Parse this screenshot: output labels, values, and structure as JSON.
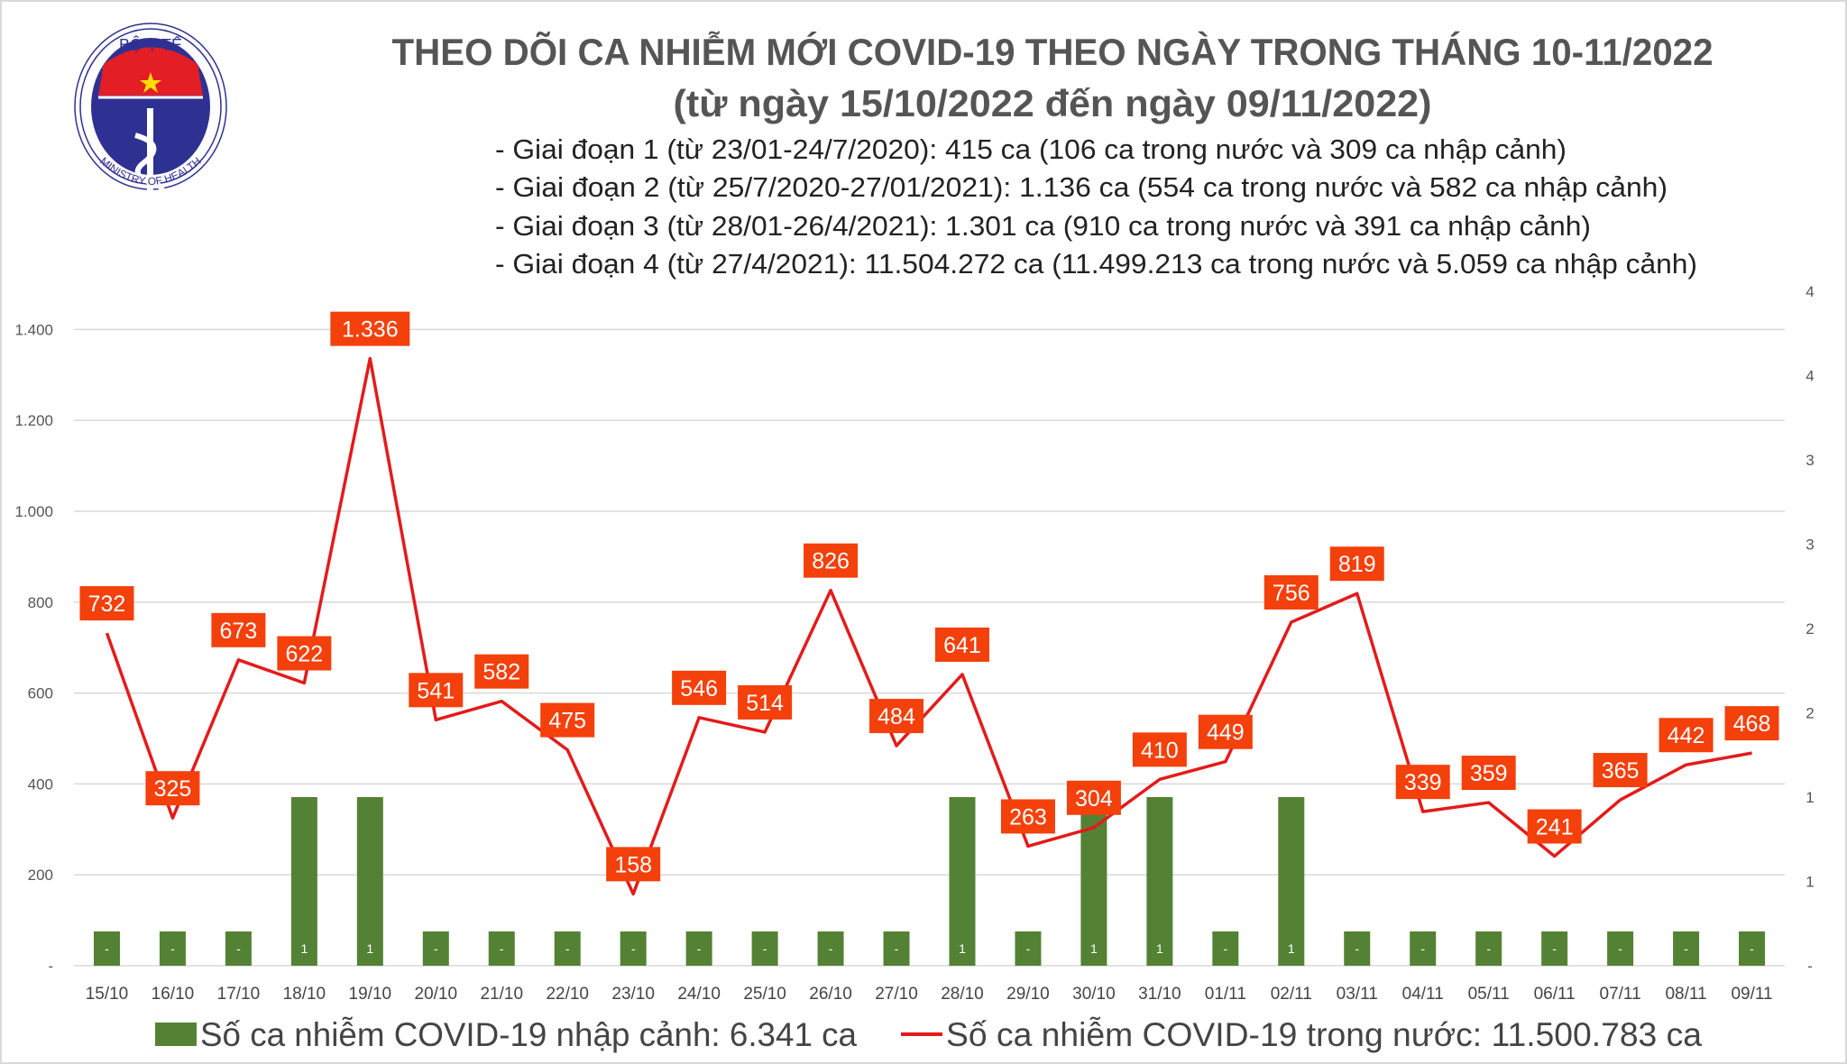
{
  "header": {
    "logo_text_top": "BỘ Y TẾ",
    "logo_text_bottom": "MINISTRY OF HEALTH",
    "title": "THEO DÕI CA NHIỄM MỚI COVID-19 THEO NGÀY TRONG THÁNG 10-11/2022",
    "subtitle": "(từ ngày 15/10/2022 đến ngày 09/11/2022)",
    "bullets": [
      "- Giai đoạn 1 (từ 23/01-24/7/2020): 415 ca (106 ca trong nước và 309 ca nhập cảnh)",
      "- Giai đoạn 2 (từ 25/7/2020-27/01/2021): 1.136 ca (554 ca trong nước và 582 ca nhập cảnh)",
      "- Giai đoạn 3 (từ 28/01-26/4/2021): 1.301 ca (910 ca trong nước và 391 ca nhập cảnh)",
      "- Giai đoạn 4 (từ 27/4/2021): 11.504.272 ca (11.499.213 ca trong nước và 5.059 ca nhập cảnh)"
    ]
  },
  "chart_data": {
    "type": "bar+line",
    "categories": [
      "15/10",
      "16/10",
      "17/10",
      "18/10",
      "19/10",
      "20/10",
      "21/10",
      "22/10",
      "23/10",
      "24/10",
      "25/10",
      "26/10",
      "27/10",
      "28/10",
      "29/10",
      "30/10",
      "31/10",
      "01/11",
      "02/11",
      "03/11",
      "04/11",
      "05/11",
      "06/11",
      "07/11",
      "08/11",
      "09/11"
    ],
    "series": [
      {
        "name": "Số ca nhiễm COVID-19 nhập cảnh: 6.341 ca",
        "type": "bar",
        "axis": "right",
        "color": "#548235",
        "values": [
          0,
          0,
          0,
          1,
          1,
          0,
          0,
          0,
          0,
          0,
          0,
          0,
          0,
          1,
          0,
          1,
          1,
          0,
          1,
          0,
          0,
          0,
          0,
          0,
          0,
          0
        ],
        "labels": [
          "-",
          "-",
          "-",
          "1",
          "1",
          "-",
          "-",
          "-",
          "-",
          "-",
          "-",
          "-",
          "-",
          "1",
          "-",
          "1",
          "1",
          "-",
          "1",
          "-",
          "-",
          "-",
          "-",
          "-",
          "-",
          "-"
        ]
      },
      {
        "name": "Số ca nhiễm COVID-19 trong nước: 11.500.783 ca",
        "type": "line",
        "axis": "left",
        "color": "#e31b1b",
        "label_bg": "#f4400b",
        "values": [
          732,
          325,
          673,
          622,
          1336,
          541,
          582,
          475,
          158,
          546,
          514,
          826,
          484,
          641,
          263,
          304,
          410,
          449,
          756,
          819,
          339,
          359,
          241,
          365,
          442,
          468
        ],
        "labels": [
          "732",
          "325",
          "673",
          "622",
          "1.336",
          "541",
          "582",
          "475",
          "158",
          "546",
          "514",
          "826",
          "484",
          "641",
          "263",
          "304",
          "410",
          "449",
          "756",
          "819",
          "339",
          "359",
          "241",
          "365",
          "442",
          "468"
        ]
      }
    ],
    "y_left": {
      "range": [
        0,
        1500
      ],
      "ticks": [
        0,
        200,
        400,
        600,
        800,
        1000,
        1200,
        1400
      ],
      "tick_labels": [
        "-",
        "200",
        "400",
        "600",
        "800",
        "1.000",
        "1.200",
        "1.400"
      ]
    },
    "y_right": {
      "range": [
        0,
        4
      ],
      "ticks": [
        0,
        0.5,
        1,
        1.5,
        2,
        2.5,
        3,
        3.5,
        4
      ],
      "tick_labels": [
        "-",
        "1",
        "1",
        "2",
        "2",
        "3",
        "3",
        "4",
        "4"
      ]
    },
    "grid": true,
    "legend_position": "bottom"
  }
}
